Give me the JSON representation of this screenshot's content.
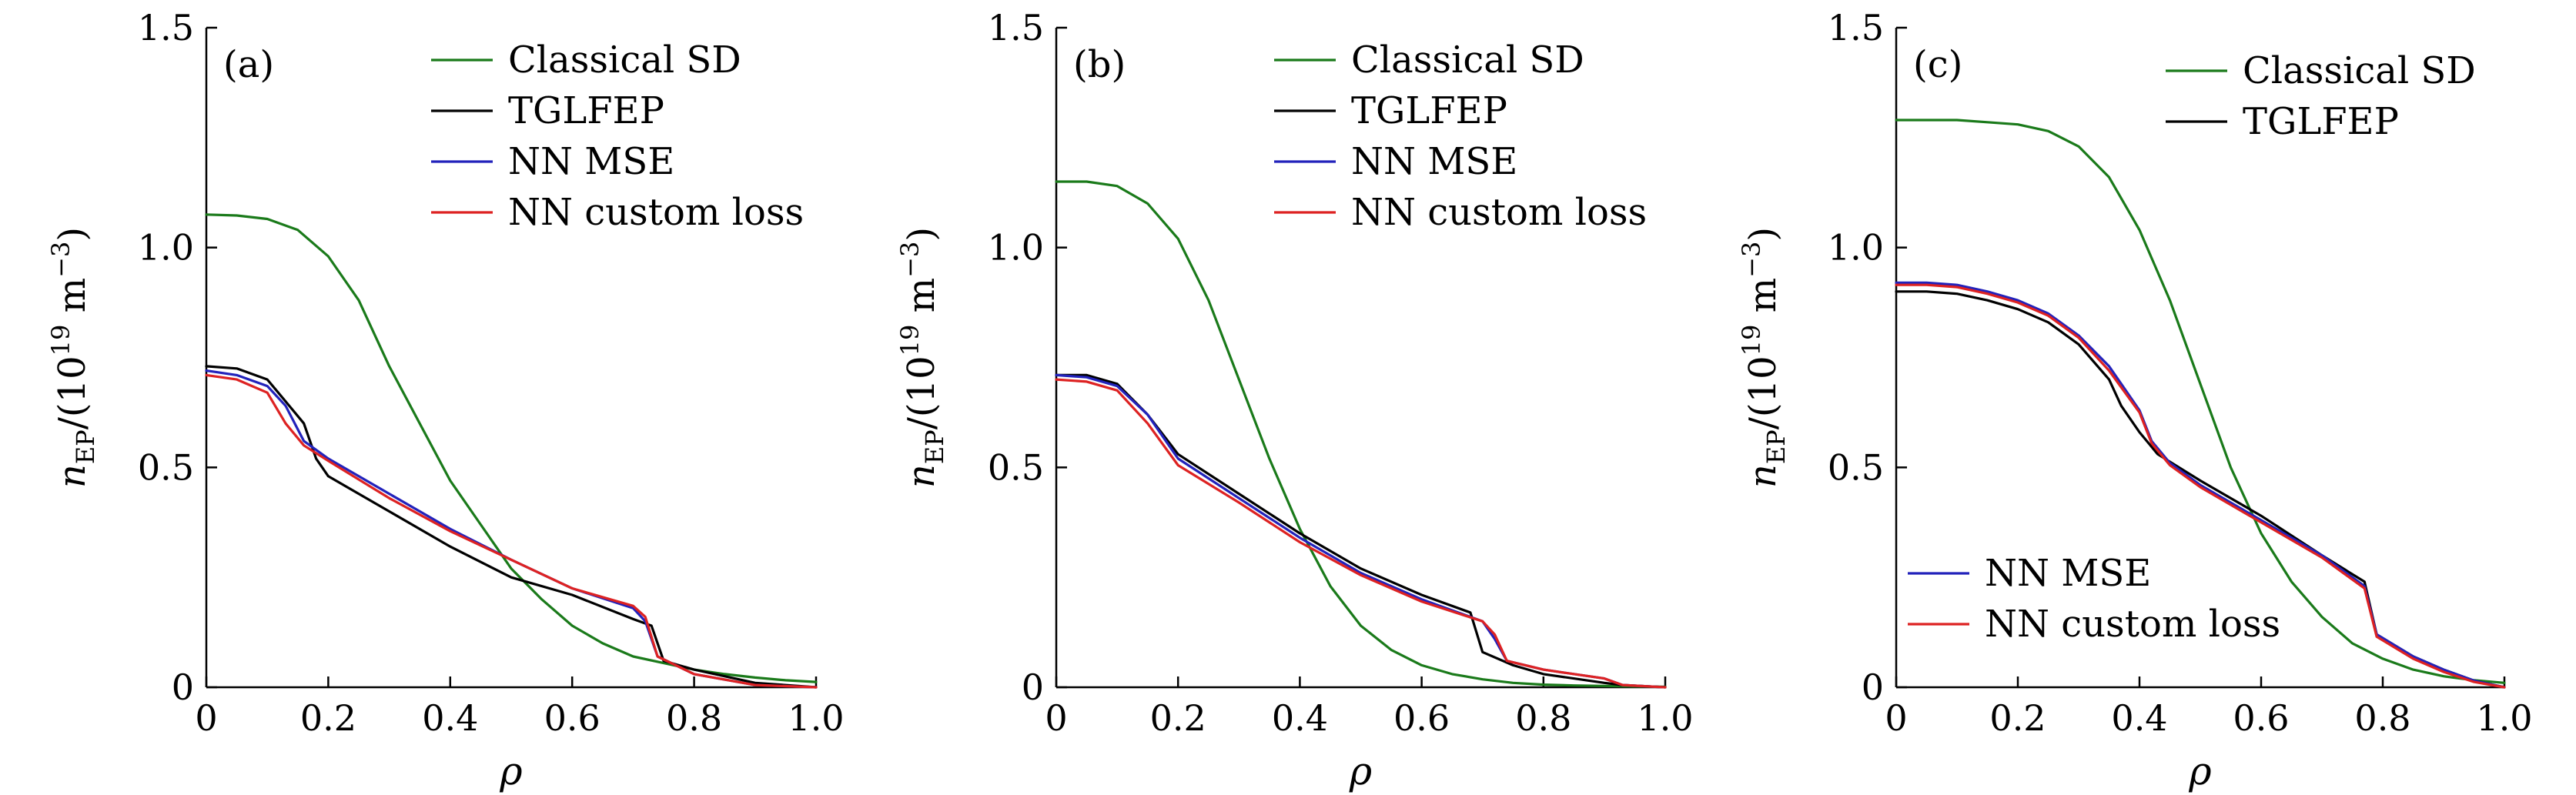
{
  "chart_data": [
    {
      "type": "line",
      "panel_label": "(a)",
      "xlabel": "ρ",
      "ylabel_main": "n",
      "ylabel_sub": "EP",
      "ylabel_rest": "/(10",
      "ylabel_sup": "19",
      "ylabel_unit": " m",
      "ylabel_unit_sup": "−3",
      "ylabel_close": ")",
      "xlim": [
        0,
        1.0
      ],
      "ylim": [
        0,
        1.5
      ],
      "xticks": [
        "0",
        "0.2",
        "0.4",
        "0.6",
        "0.8",
        "1.0"
      ],
      "yticks": [
        "0",
        "0.5",
        "1.0",
        "1.5"
      ],
      "legend_position": "top-right",
      "series": [
        {
          "name": "Classical SD",
          "color": "#1a7a1a",
          "x": [
            0,
            0.05,
            0.1,
            0.15,
            0.2,
            0.25,
            0.3,
            0.35,
            0.4,
            0.45,
            0.5,
            0.55,
            0.6,
            0.65,
            0.7,
            0.75,
            0.8,
            0.85,
            0.9,
            0.95,
            1.0
          ],
          "y": [
            1.075,
            1.073,
            1.065,
            1.04,
            0.98,
            0.88,
            0.73,
            0.6,
            0.47,
            0.37,
            0.27,
            0.2,
            0.14,
            0.1,
            0.07,
            0.055,
            0.04,
            0.03,
            0.022,
            0.016,
            0.012
          ]
        },
        {
          "name": "TGLFEP",
          "color": "#000000",
          "x": [
            0,
            0.05,
            0.1,
            0.13,
            0.16,
            0.18,
            0.2,
            0.3,
            0.4,
            0.5,
            0.6,
            0.7,
            0.73,
            0.75,
            0.8,
            0.9,
            1.0
          ],
          "y": [
            0.73,
            0.725,
            0.7,
            0.65,
            0.6,
            0.52,
            0.48,
            0.4,
            0.32,
            0.25,
            0.21,
            0.155,
            0.14,
            0.06,
            0.04,
            0.01,
            0.0
          ]
        },
        {
          "name": "NN MSE",
          "color": "#2222bb",
          "x": [
            0,
            0.05,
            0.1,
            0.13,
            0.16,
            0.2,
            0.3,
            0.4,
            0.5,
            0.6,
            0.7,
            0.72,
            0.74,
            0.8,
            0.9,
            1.0
          ],
          "y": [
            0.72,
            0.71,
            0.685,
            0.64,
            0.56,
            0.52,
            0.44,
            0.36,
            0.29,
            0.225,
            0.18,
            0.15,
            0.07,
            0.03,
            0.005,
            0.0
          ]
        },
        {
          "name": "NN custom loss",
          "color": "#dd2222",
          "x": [
            0,
            0.05,
            0.1,
            0.13,
            0.16,
            0.2,
            0.3,
            0.4,
            0.5,
            0.6,
            0.7,
            0.72,
            0.74,
            0.8,
            0.9,
            1.0
          ],
          "y": [
            0.71,
            0.7,
            0.67,
            0.6,
            0.55,
            0.515,
            0.43,
            0.355,
            0.29,
            0.225,
            0.185,
            0.16,
            0.07,
            0.03,
            0.005,
            0.0
          ]
        }
      ]
    },
    {
      "type": "line",
      "panel_label": "(b)",
      "xlabel": "ρ",
      "ylabel_main": "n",
      "ylabel_sub": "EP",
      "ylabel_rest": "/(10",
      "ylabel_sup": "19",
      "ylabel_unit": " m",
      "ylabel_unit_sup": "−3",
      "ylabel_close": ")",
      "xlim": [
        0,
        1.0
      ],
      "ylim": [
        0,
        1.5
      ],
      "xticks": [
        "0",
        "0.2",
        "0.4",
        "0.6",
        "0.8",
        "1.0"
      ],
      "yticks": [
        "0",
        "0.5",
        "1.0",
        "1.5"
      ],
      "legend_position": "top-right",
      "series": [
        {
          "name": "Classical SD",
          "color": "#1a7a1a",
          "x": [
            0,
            0.05,
            0.1,
            0.15,
            0.2,
            0.25,
            0.3,
            0.35,
            0.4,
            0.45,
            0.5,
            0.55,
            0.6,
            0.65,
            0.7,
            0.75,
            0.8,
            0.85,
            0.9,
            0.95,
            1.0
          ],
          "y": [
            1.15,
            1.15,
            1.14,
            1.1,
            1.02,
            0.88,
            0.7,
            0.52,
            0.36,
            0.23,
            0.14,
            0.085,
            0.05,
            0.03,
            0.018,
            0.01,
            0.006,
            0.004,
            0.003,
            0.002,
            0.001
          ]
        },
        {
          "name": "TGLFEP",
          "color": "#000000",
          "x": [
            0,
            0.05,
            0.1,
            0.15,
            0.2,
            0.3,
            0.4,
            0.5,
            0.6,
            0.68,
            0.7,
            0.75,
            0.8,
            0.9,
            0.93,
            1.0
          ],
          "y": [
            0.71,
            0.71,
            0.69,
            0.62,
            0.53,
            0.44,
            0.35,
            0.27,
            0.21,
            0.17,
            0.08,
            0.05,
            0.03,
            0.01,
            0.005,
            0.0
          ]
        },
        {
          "name": "NN MSE",
          "color": "#2222bb",
          "x": [
            0,
            0.05,
            0.1,
            0.15,
            0.2,
            0.3,
            0.4,
            0.5,
            0.6,
            0.7,
            0.72,
            0.74,
            0.8,
            0.9,
            0.93,
            1.0
          ],
          "y": [
            0.71,
            0.705,
            0.685,
            0.62,
            0.52,
            0.43,
            0.34,
            0.26,
            0.2,
            0.15,
            0.11,
            0.06,
            0.04,
            0.02,
            0.005,
            0.0
          ]
        },
        {
          "name": "NN custom loss",
          "color": "#dd2222",
          "x": [
            0,
            0.05,
            0.1,
            0.15,
            0.2,
            0.3,
            0.4,
            0.5,
            0.6,
            0.7,
            0.72,
            0.74,
            0.8,
            0.9,
            0.93,
            1.0
          ],
          "y": [
            0.7,
            0.695,
            0.675,
            0.6,
            0.505,
            0.42,
            0.33,
            0.255,
            0.195,
            0.15,
            0.12,
            0.06,
            0.04,
            0.02,
            0.005,
            0.0
          ]
        }
      ]
    },
    {
      "type": "line",
      "panel_label": "(c)",
      "xlabel": "ρ",
      "ylabel_main": "n",
      "ylabel_sub": "EP",
      "ylabel_rest": "/(10",
      "ylabel_sup": "19",
      "ylabel_unit": " m",
      "ylabel_unit_sup": "−3",
      "ylabel_close": ")",
      "xlim": [
        0,
        1.0
      ],
      "ylim": [
        0,
        1.5
      ],
      "xticks": [
        "0",
        "0.2",
        "0.4",
        "0.6",
        "0.8",
        "1.0"
      ],
      "yticks": [
        "0",
        "0.5",
        "1.0",
        "1.5"
      ],
      "legend_position": "top-right / bottom-left",
      "series": [
        {
          "name": "Classical SD",
          "color": "#1a7a1a",
          "x": [
            0,
            0.05,
            0.1,
            0.15,
            0.2,
            0.25,
            0.3,
            0.35,
            0.4,
            0.45,
            0.5,
            0.55,
            0.6,
            0.65,
            0.7,
            0.75,
            0.8,
            0.85,
            0.9,
            0.95,
            1.0
          ],
          "y": [
            1.29,
            1.29,
            1.29,
            1.285,
            1.28,
            1.265,
            1.23,
            1.16,
            1.04,
            0.88,
            0.69,
            0.5,
            0.35,
            0.24,
            0.16,
            0.1,
            0.065,
            0.04,
            0.025,
            0.016,
            0.01
          ]
        },
        {
          "name": "TGLFEP",
          "color": "#000000",
          "x": [
            0,
            0.05,
            0.1,
            0.15,
            0.2,
            0.25,
            0.3,
            0.35,
            0.37,
            0.4,
            0.43,
            0.5,
            0.6,
            0.7,
            0.77,
            0.79,
            0.85,
            0.9,
            0.95,
            1.0
          ],
          "y": [
            0.9,
            0.9,
            0.895,
            0.88,
            0.86,
            0.83,
            0.78,
            0.7,
            0.64,
            0.58,
            0.53,
            0.47,
            0.39,
            0.3,
            0.24,
            0.12,
            0.07,
            0.04,
            0.015,
            0.0
          ]
        },
        {
          "name": "NN MSE",
          "color": "#2222bb",
          "x": [
            0,
            0.05,
            0.1,
            0.15,
            0.2,
            0.25,
            0.3,
            0.35,
            0.4,
            0.42,
            0.45,
            0.5,
            0.6,
            0.7,
            0.77,
            0.79,
            0.85,
            0.9,
            0.95,
            1.0
          ],
          "y": [
            0.92,
            0.92,
            0.915,
            0.9,
            0.88,
            0.85,
            0.8,
            0.73,
            0.63,
            0.56,
            0.51,
            0.46,
            0.38,
            0.3,
            0.23,
            0.12,
            0.07,
            0.04,
            0.015,
            0.0
          ]
        },
        {
          "name": "NN custom loss",
          "color": "#dd2222",
          "x": [
            0,
            0.05,
            0.1,
            0.15,
            0.2,
            0.25,
            0.3,
            0.35,
            0.4,
            0.42,
            0.45,
            0.5,
            0.6,
            0.7,
            0.77,
            0.79,
            0.85,
            0.9,
            0.95,
            1.0
          ],
          "y": [
            0.915,
            0.915,
            0.91,
            0.895,
            0.875,
            0.845,
            0.795,
            0.72,
            0.625,
            0.555,
            0.505,
            0.455,
            0.375,
            0.295,
            0.225,
            0.115,
            0.065,
            0.035,
            0.012,
            0.0
          ]
        }
      ]
    }
  ]
}
